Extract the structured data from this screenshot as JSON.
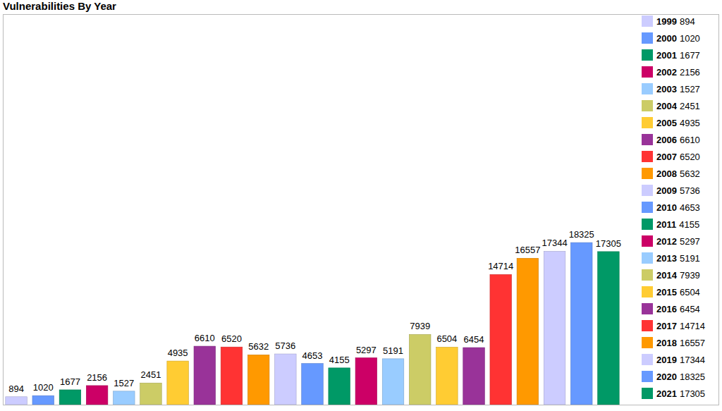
{
  "chart_data": {
    "type": "bar",
    "title": "Vulnerabilities By Year",
    "categories": [
      "1999",
      "2000",
      "2001",
      "2002",
      "2003",
      "2004",
      "2005",
      "2006",
      "2007",
      "2008",
      "2009",
      "2010",
      "2011",
      "2012",
      "2013",
      "2014",
      "2015",
      "2016",
      "2017",
      "2018",
      "2019",
      "2020",
      "2021"
    ],
    "values": [
      894,
      1020,
      1677,
      2156,
      1527,
      2451,
      4935,
      6610,
      6520,
      5632,
      5736,
      4653,
      4155,
      5297,
      5191,
      7939,
      6504,
      6454,
      14714,
      16557,
      17344,
      18325,
      17305
    ],
    "colors": [
      "#ccccff",
      "#6699ff",
      "#009966",
      "#cc0066",
      "#99ccff",
      "#cccc66",
      "#ffcc33",
      "#993399",
      "#ff3333",
      "#ff9900",
      "#ccccff",
      "#6699ff",
      "#009966",
      "#cc0066",
      "#99ccff",
      "#cccc66",
      "#ffcc33",
      "#993399",
      "#ff3333",
      "#ff9900",
      "#ccccff",
      "#6699ff",
      "#009966"
    ],
    "ylim": [
      0,
      44000
    ],
    "yticks": [],
    "grid": false,
    "data_labels": true,
    "tick_labels": false,
    "legend": "right"
  }
}
